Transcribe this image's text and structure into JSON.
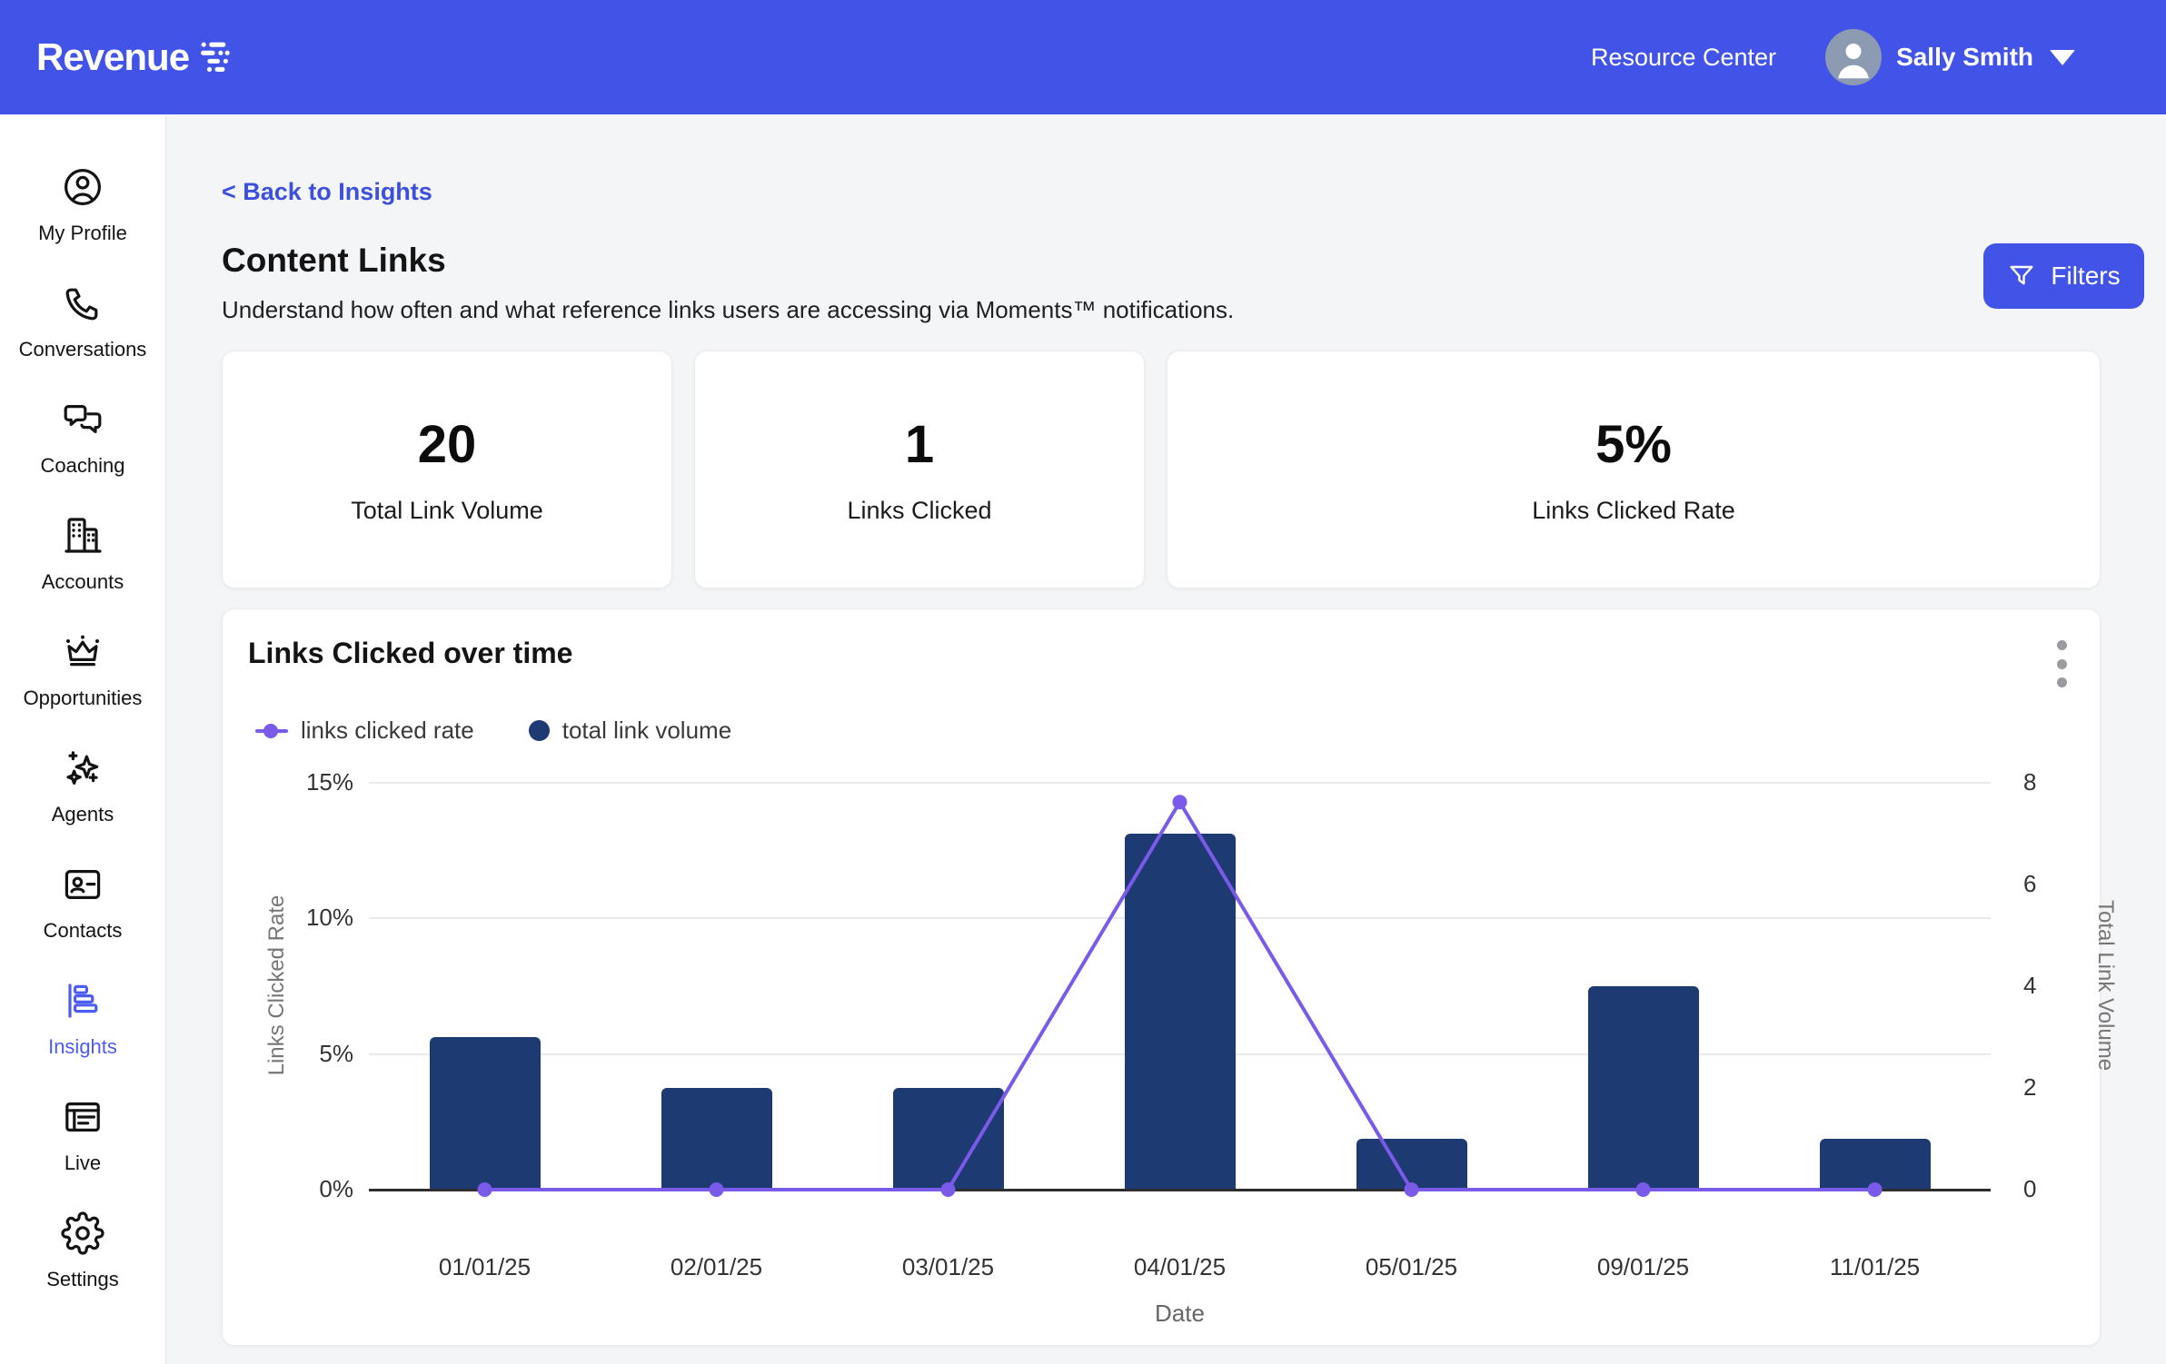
{
  "colors": {
    "accent": "#4254E8",
    "bar": "#1E3A72",
    "line": "#7A5AE8",
    "active_nav": "#4C5BF0",
    "page_bg": "#F4F5F7"
  },
  "header": {
    "logo_text": "Revenue",
    "resource_center_label": "Resource Center",
    "user_name": "Sally Smith"
  },
  "sidebar": {
    "items": [
      {
        "label": "My Profile",
        "icon": "profile-icon",
        "active": false
      },
      {
        "label": "Conversations",
        "icon": "conversations-icon",
        "active": false
      },
      {
        "label": "Coaching",
        "icon": "coaching-icon",
        "active": false
      },
      {
        "label": "Accounts",
        "icon": "accounts-icon",
        "active": false
      },
      {
        "label": "Opportunities",
        "icon": "opportunities-icon",
        "active": false
      },
      {
        "label": "Agents",
        "icon": "agents-icon",
        "active": false
      },
      {
        "label": "Contacts",
        "icon": "contacts-icon",
        "active": false
      },
      {
        "label": "Insights",
        "icon": "insights-icon",
        "active": true
      },
      {
        "label": "Live",
        "icon": "live-icon",
        "active": false
      },
      {
        "label": "Settings",
        "icon": "settings-icon",
        "active": false
      }
    ]
  },
  "page": {
    "back_link": "< Back to Insights",
    "title": "Content Links",
    "subtitle": "Understand how often and what reference links users are accessing via Moments™ notifications.",
    "filters_label": "Filters"
  },
  "stats": [
    {
      "value": "20",
      "label": "Total Link Volume"
    },
    {
      "value": "1",
      "label": "Links Clicked"
    },
    {
      "value": "5%",
      "label": "Links Clicked Rate"
    }
  ],
  "chart_data": {
    "type": "bar",
    "title": "Links Clicked over time",
    "categories": [
      "01/01/25",
      "02/01/25",
      "03/01/25",
      "04/01/25",
      "05/01/25",
      "09/01/25",
      "11/01/25"
    ],
    "series": [
      {
        "name": "links clicked rate",
        "type": "line",
        "color": "#7A5AE8",
        "axis": "left",
        "values": [
          0,
          0,
          0,
          14.29,
          0,
          0,
          0
        ]
      },
      {
        "name": "total link volume",
        "type": "bar",
        "color": "#1E3A72",
        "axis": "right",
        "values": [
          3,
          2,
          2,
          7,
          1,
          4,
          1
        ]
      }
    ],
    "xlabel": "Date",
    "left_axis": {
      "label": "Links Clicked Rate",
      "max": 15,
      "tick_values": [
        0,
        5,
        10,
        15
      ],
      "tick_labels": [
        "0%",
        "5%",
        "10%",
        "15%"
      ]
    },
    "right_axis": {
      "label": "Total Link Volume",
      "max": 8,
      "tick_values": [
        0,
        2,
        4,
        6,
        8
      ],
      "tick_labels": [
        "0",
        "2",
        "4",
        "6",
        "8"
      ]
    },
    "grid": true,
    "legend_position": "top-left"
  }
}
